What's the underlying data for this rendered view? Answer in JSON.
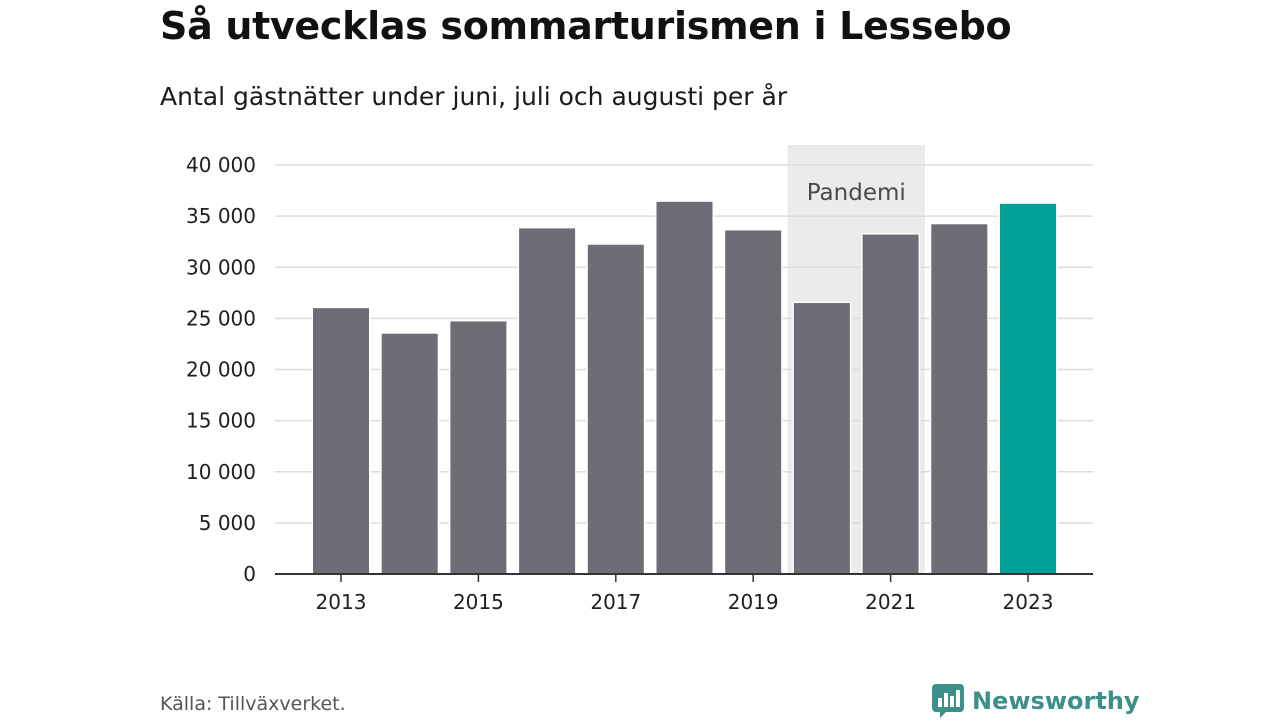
{
  "header": {
    "title": "Så utvecklas sommarturismen i Lessebo",
    "subtitle": "Antal gästnätter under juni, juli och augusti per år"
  },
  "chart_data": {
    "type": "bar",
    "categories": [
      "2013",
      "2014",
      "2015",
      "2016",
      "2017",
      "2018",
      "2019",
      "2020",
      "2021",
      "2022",
      "2023"
    ],
    "values": [
      26000,
      23500,
      24700,
      33800,
      32200,
      36400,
      33600,
      26500,
      33200,
      34200,
      36200
    ],
    "highlight": "2023",
    "colors": {
      "bar": "#6e6d75",
      "highlight": "#00a096",
      "annotation_band": "#ebebeb",
      "grid": "#dcdcdc",
      "axis": "#333333"
    },
    "ylim": [
      0,
      40000
    ],
    "y_ticks": [
      0,
      5000,
      10000,
      15000,
      20000,
      25000,
      30000,
      35000,
      40000
    ],
    "y_tick_labels": [
      "0",
      "5 000",
      "10 000",
      "15 000",
      "20 000",
      "25 000",
      "30 000",
      "35 000",
      "40 000"
    ],
    "x_tick_labels": [
      "2013",
      "2015",
      "2017",
      "2019",
      "2021",
      "2023"
    ],
    "grid": true,
    "annotation": {
      "label": "Pandemi",
      "from": "2020",
      "to": "2021"
    }
  },
  "footer": {
    "source": "Källa: Tillväxverket.",
    "brand": "Newsworthy",
    "brand_icon": "newsworthy-logo-icon",
    "brand_color": "#3d8f8c"
  }
}
